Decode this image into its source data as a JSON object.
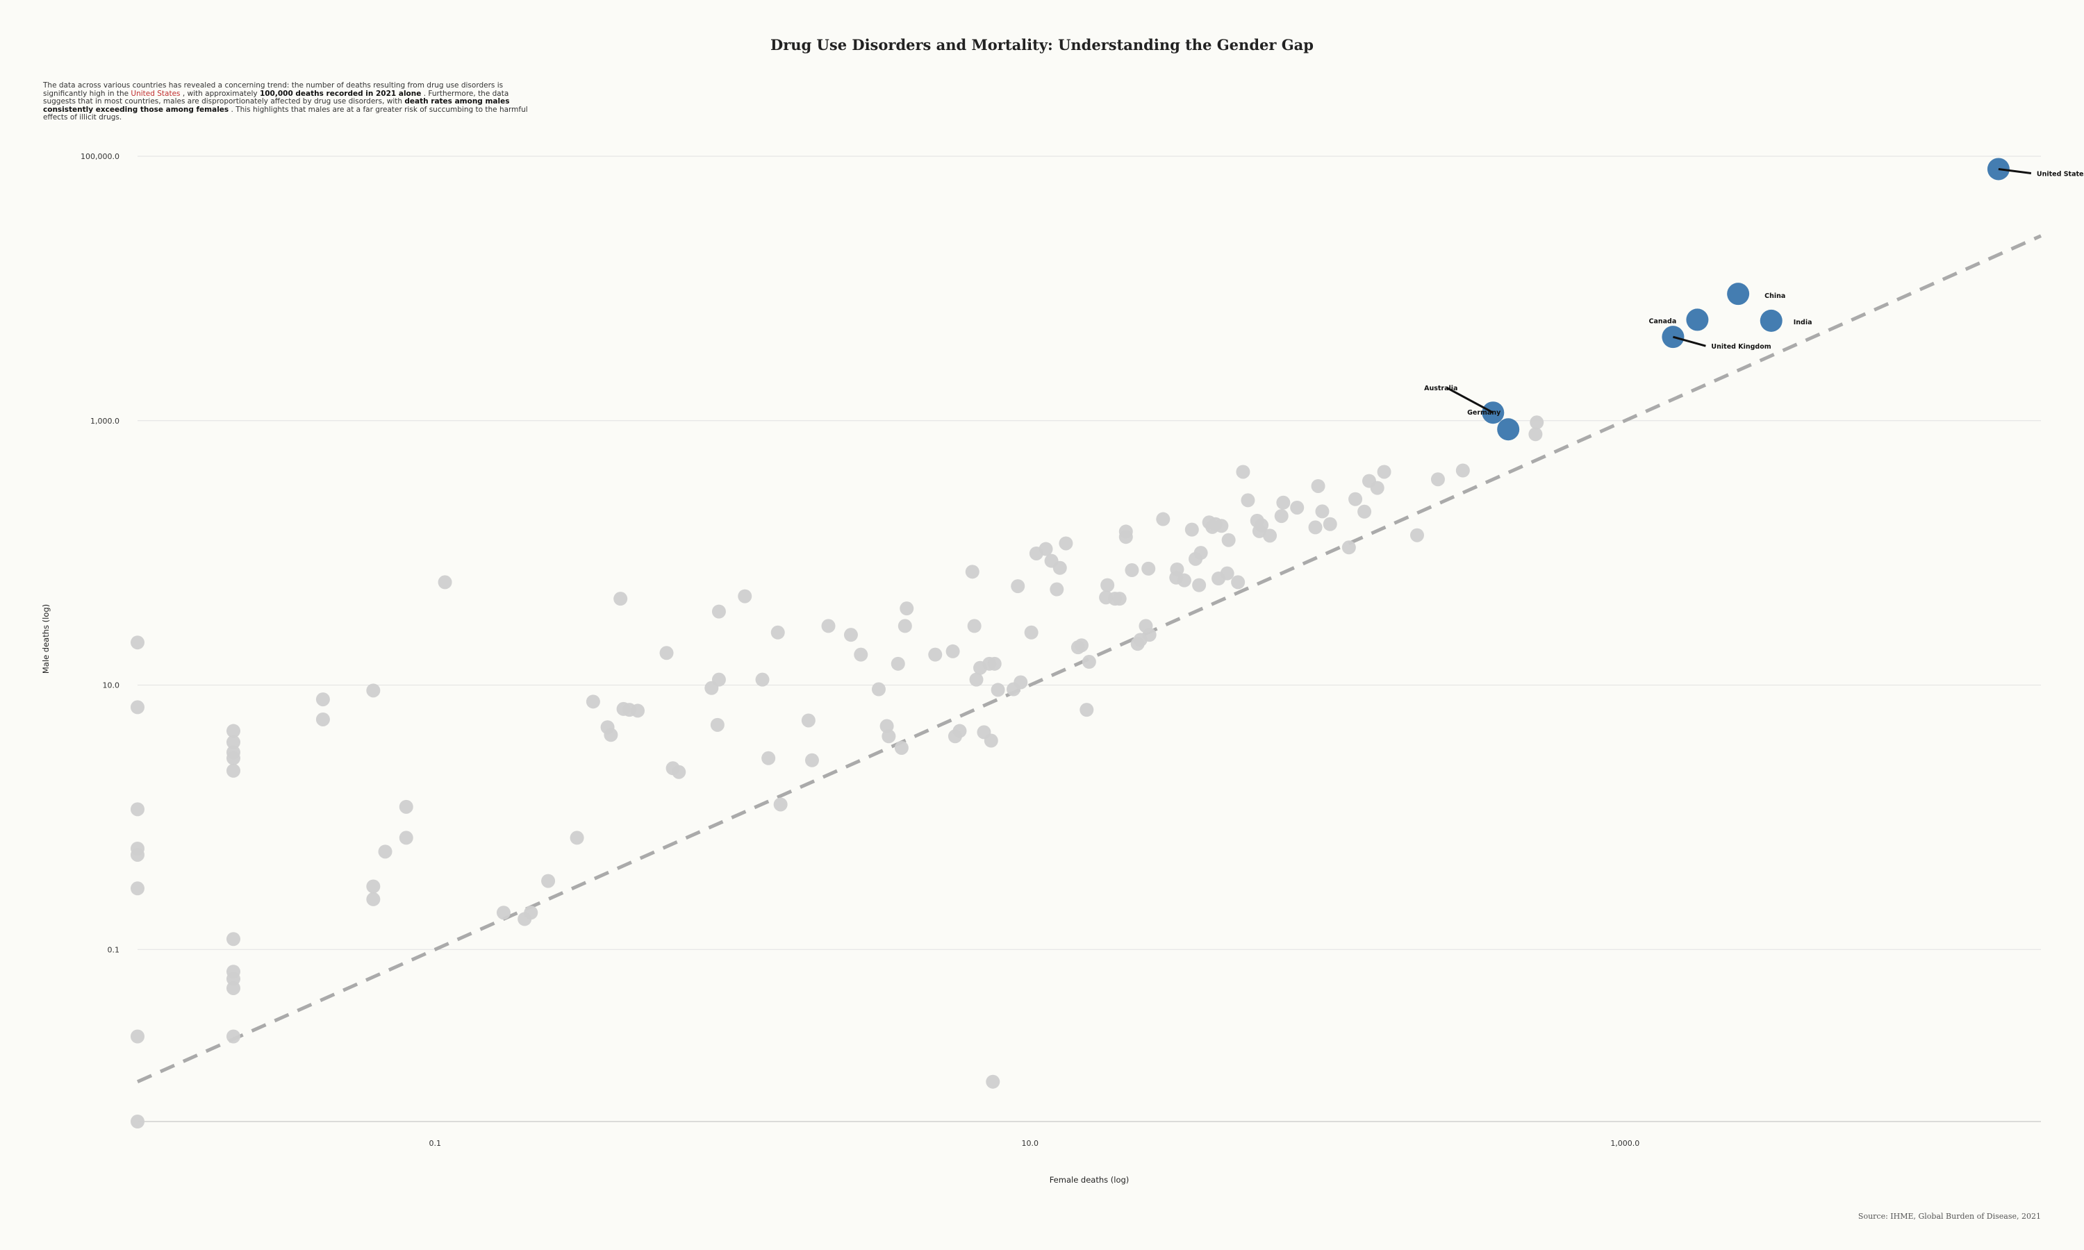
{
  "chart_data": {
    "type": "scatter",
    "title": "Drug Use Disorders and Mortality: Understanding the Gender Gap",
    "subtitle_parts": [
      {
        "text": "The data across various countries has revealed a concerning  trend: the number of deaths resulting from drug use disorders is significantly  high in the ",
        "style": "normal"
      },
      {
        "text": "United States",
        "style": "highlight"
      },
      {
        "text": " , with approximately ",
        "style": "normal"
      },
      {
        "text": "100,000 deaths recorded in 2021 alone",
        "style": "bold"
      },
      {
        "text": " . Furthermore, the data suggests that in most countries, males are disproportionately  affected by drug use disorders, with ",
        "style": "normal"
      },
      {
        "text": "death rates among males consistently exceeding those among females",
        "style": "bold"
      },
      {
        "text": " . This highlights  that males are at a far greater risk of succumbing to the harmful effects of illicit  drugs.",
        "style": "normal"
      }
    ],
    "source": "Source: IHME, Global Burden of Disease, 2021",
    "xlabel": "Female deaths (log)",
    "ylabel": "Male deaths (log)",
    "xscale": "log",
    "yscale": "log",
    "xlim": [
      0.01,
      25000
    ],
    "ylim": [
      0.005,
      100000
    ],
    "xticks": [
      {
        "value": 0.1,
        "label": "0.1"
      },
      {
        "value": 10,
        "label": "10.0"
      },
      {
        "value": 1000,
        "label": "1,000.0"
      }
    ],
    "yticks": [
      {
        "value": 0.1,
        "label": "0.1"
      },
      {
        "value": 10,
        "label": "10.0"
      },
      {
        "value": 1000,
        "label": "1,000.0"
      },
      {
        "value": 100000,
        "label": "100,000.0"
      }
    ],
    "grid": "horizontal",
    "reference_line": "y = x",
    "colors": {
      "highlight": "#3a76ad",
      "other": "#cfcfcf",
      "reference": "#aaaaaa",
      "grid": "#e2e2e2",
      "emphasis_text": "#c03030"
    },
    "highlighted": [
      {
        "name": "United States",
        "x": 18000,
        "y": 80000
      },
      {
        "name": "China",
        "x": 2400,
        "y": 9100
      },
      {
        "name": "India",
        "x": 3100,
        "y": 5700
      },
      {
        "name": "Canada",
        "x": 1750,
        "y": 5800
      },
      {
        "name": "United Kingdom",
        "x": 1450,
        "y": 4300
      },
      {
        "name": "Australia",
        "x": 360,
        "y": 1150
      },
      {
        "name": "Germany",
        "x": 405,
        "y": 860
      }
    ],
    "others": [
      [
        0.01,
        21
      ],
      [
        0.01,
        6.8
      ],
      [
        0.01,
        1.15
      ],
      [
        0.01,
        0.58
      ],
      [
        0.01,
        0.52
      ],
      [
        0.01,
        0.29
      ],
      [
        0.01,
        0.022
      ],
      [
        0.01,
        0.005
      ],
      [
        0.021,
        4.5
      ],
      [
        0.021,
        3.7
      ],
      [
        0.021,
        3.1
      ],
      [
        0.021,
        2.8
      ],
      [
        0.021,
        2.25
      ],
      [
        0.021,
        0.12
      ],
      [
        0.021,
        0.068
      ],
      [
        0.021,
        0.06
      ],
      [
        0.021,
        0.051
      ],
      [
        0.021,
        0.022
      ],
      [
        0.042,
        7.8
      ],
      [
        0.042,
        5.5
      ],
      [
        0.062,
        9.1
      ],
      [
        0.062,
        0.3
      ],
      [
        0.062,
        0.24
      ],
      [
        0.108,
        60
      ],
      [
        0.068,
        0.55
      ],
      [
        0.08,
        1.2
      ],
      [
        0.08,
        0.7
      ],
      [
        0.17,
        0.19
      ],
      [
        0.2,
        0.17
      ],
      [
        0.21,
        0.19
      ],
      [
        0.24,
        0.33
      ],
      [
        0.3,
        0.7
      ],
      [
        0.34,
        7.5
      ],
      [
        0.38,
        4.8
      ],
      [
        0.39,
        4.2
      ],
      [
        0.42,
        45
      ],
      [
        0.43,
        6.6
      ],
      [
        0.45,
        6.5
      ],
      [
        0.48,
        6.4
      ],
      [
        0.6,
        17.5
      ],
      [
        0.63,
        2.35
      ],
      [
        0.66,
        2.2
      ],
      [
        0.85,
        9.5
      ],
      [
        0.89,
        5.0
      ],
      [
        0.9,
        36
      ],
      [
        0.9,
        11
      ],
      [
        1.1,
        47
      ],
      [
        1.26,
        11
      ],
      [
        1.32,
        2.8
      ],
      [
        1.42,
        25
      ],
      [
        1.45,
        1.25
      ],
      [
        1.8,
        5.4
      ],
      [
        1.85,
        2.7
      ],
      [
        2.1,
        28
      ],
      [
        2.5,
        24
      ],
      [
        2.7,
        17
      ],
      [
        3.1,
        9.3
      ],
      [
        3.3,
        4.9
      ],
      [
        3.35,
        4.1
      ],
      [
        3.6,
        14.5
      ],
      [
        3.7,
        3.35
      ],
      [
        3.8,
        28
      ],
      [
        3.85,
        38
      ],
      [
        4.8,
        17
      ],
      [
        5.5,
        18
      ],
      [
        5.6,
        4.1
      ],
      [
        5.8,
        4.5
      ],
      [
        6.4,
        72
      ],
      [
        6.5,
        28
      ],
      [
        6.6,
        11
      ],
      [
        6.8,
        13.5
      ],
      [
        7.0,
        4.4
      ],
      [
        7.3,
        14.5
      ],
      [
        7.4,
        3.8
      ],
      [
        7.5,
        0.01
      ],
      [
        7.6,
        14.5
      ],
      [
        7.8,
        9.2
      ],
      [
        8.8,
        9.3
      ],
      [
        9.1,
        56
      ],
      [
        9.3,
        10.5
      ],
      [
        10.1,
        25
      ],
      [
        10.5,
        99
      ],
      [
        11.3,
        107
      ],
      [
        11.8,
        87
      ],
      [
        12.3,
        53
      ],
      [
        12.6,
        77
      ],
      [
        13.2,
        118
      ],
      [
        14.5,
        19.3
      ],
      [
        14.9,
        20
      ],
      [
        15.5,
        6.5
      ],
      [
        15.8,
        15
      ],
      [
        18,
        46
      ],
      [
        18.2,
        57
      ],
      [
        19.3,
        45
      ],
      [
        20,
        45
      ],
      [
        21,
        132
      ],
      [
        21,
        145
      ],
      [
        22,
        74
      ],
      [
        23,
        20.5
      ],
      [
        23.5,
        22
      ],
      [
        24.5,
        28
      ],
      [
        25,
        76
      ],
      [
        25.2,
        24
      ],
      [
        28,
        180
      ],
      [
        31,
        65
      ],
      [
        31.2,
        75
      ],
      [
        33,
        62
      ],
      [
        35,
        150
      ],
      [
        36,
        90
      ],
      [
        37,
        57
      ],
      [
        37.5,
        100
      ],
      [
        40,
        170
      ],
      [
        41,
        157
      ],
      [
        42,
        165
      ],
      [
        43,
        64
      ],
      [
        44,
        160
      ],
      [
        46,
        70
      ],
      [
        46.5,
        125
      ],
      [
        50,
        60
      ],
      [
        52,
        410
      ],
      [
        54,
        250
      ],
      [
        58,
        175
      ],
      [
        59,
        146
      ],
      [
        60,
        162
      ],
      [
        64,
        135
      ],
      [
        70,
        190
      ],
      [
        71,
        240
      ],
      [
        79,
        220
      ],
      [
        91,
        156
      ],
      [
        93,
        320
      ],
      [
        96,
        206
      ],
      [
        102,
        165
      ],
      [
        118,
        110
      ],
      [
        124,
        255
      ],
      [
        133,
        205
      ],
      [
        138,
        350
      ],
      [
        147,
        310
      ],
      [
        155,
        410
      ],
      [
        200,
        136
      ],
      [
        235,
        360
      ],
      [
        285,
        420
      ],
      [
        500,
        790
      ],
      [
        505,
        970
      ]
    ]
  }
}
